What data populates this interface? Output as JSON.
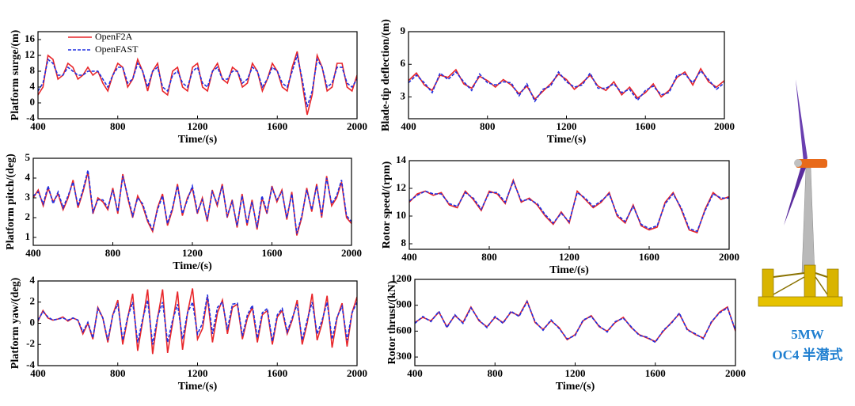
{
  "chart_data": [
    {
      "type": "line",
      "xlabel": "Time/(s)",
      "ylabel": "Platform surge/(m)",
      "legend": "upper left",
      "x": [
        400,
        425,
        450,
        475,
        500,
        525,
        550,
        575,
        600,
        625,
        650,
        675,
        700,
        725,
        750,
        775,
        800,
        825,
        850,
        875,
        900,
        925,
        950,
        975,
        1000,
        1025,
        1050,
        1075,
        1100,
        1125,
        1150,
        1175,
        1200,
        1225,
        1250,
        1275,
        1300,
        1325,
        1350,
        1375,
        1400,
        1425,
        1450,
        1475,
        1500,
        1525,
        1550,
        1575,
        1600,
        1625,
        1650,
        1675,
        1700,
        1725,
        1750,
        1775,
        1800,
        1825,
        1850,
        1875,
        1900,
        1925,
        1950,
        1975,
        2000
      ],
      "series": [
        {
          "name": "OpenF2A",
          "color": "#e8262a",
          "line_style": "solid",
          "values": [
            2,
            4,
            12,
            11,
            6,
            7,
            10,
            9,
            6,
            7,
            9,
            7,
            8,
            5,
            3,
            7,
            10,
            9,
            4,
            6,
            11,
            8,
            3,
            8,
            10,
            3,
            2,
            8,
            9,
            4,
            3,
            9,
            10,
            4,
            3,
            8,
            10,
            6,
            5,
            9,
            8,
            4,
            5,
            10,
            8,
            3,
            6,
            10,
            8,
            4,
            3,
            9,
            13,
            5,
            -3,
            2,
            12,
            9,
            3,
            4,
            10,
            10,
            4,
            3,
            7
          ]
        },
        {
          "name": "OpenFAST",
          "color": "#1f2ee0",
          "line_style": "dashed",
          "values": [
            3,
            5,
            11,
            10,
            7,
            7,
            9,
            8,
            7,
            7,
            8,
            8,
            8,
            6,
            4,
            7,
            9,
            9,
            5,
            6,
            10,
            8,
            4,
            8,
            9,
            4,
            3,
            7,
            8,
            5,
            4,
            8,
            9,
            5,
            4,
            8,
            9,
            6,
            6,
            8,
            8,
            5,
            6,
            9,
            8,
            4,
            6,
            9,
            8,
            5,
            4,
            8,
            12,
            6,
            -1,
            3,
            11,
            9,
            4,
            5,
            9,
            9,
            5,
            4,
            6
          ]
        }
      ],
      "xlim": [
        400,
        2000
      ],
      "ylim": [
        -4,
        18
      ],
      "xticks": [
        400,
        800,
        1200,
        1600,
        2000
      ],
      "yticks": [
        -4,
        0,
        4,
        8,
        12,
        16
      ]
    },
    {
      "type": "line",
      "xlabel": "Time/(s)",
      "ylabel": "Blade-tip deflection/(m)",
      "x": [
        400,
        440,
        480,
        520,
        560,
        600,
        640,
        680,
        720,
        760,
        800,
        840,
        880,
        920,
        960,
        1000,
        1040,
        1080,
        1120,
        1160,
        1200,
        1240,
        1280,
        1320,
        1360,
        1400,
        1440,
        1480,
        1520,
        1560,
        1600,
        1640,
        1680,
        1720,
        1760,
        1800,
        1840,
        1880,
        1920,
        1960,
        2000
      ],
      "series": [
        {
          "color": "#e8262a",
          "line_style": "solid",
          "values": [
            4.5,
            5.2,
            4.1,
            3.6,
            5.0,
            4.8,
            5.5,
            4.2,
            3.8,
            4.9,
            4.5,
            3.9,
            4.6,
            4.1,
            3.3,
            4.0,
            2.8,
            3.5,
            4.2,
            5.1,
            4.6,
            3.7,
            4.3,
            5.0,
            4.0,
            3.6,
            4.4,
            3.2,
            3.9,
            2.9,
            3.4,
            4.2,
            3.0,
            3.6,
            4.8,
            5.3,
            4.1,
            5.6,
            4.4,
            3.9,
            4.5
          ]
        },
        {
          "color": "#1f2ee0",
          "line_style": "dashed",
          "values": [
            4.3,
            5.0,
            4.3,
            3.4,
            5.2,
            4.6,
            5.3,
            4.4,
            3.6,
            5.1,
            4.3,
            4.1,
            4.4,
            4.3,
            3.1,
            4.2,
            2.6,
            3.7,
            4.0,
            5.3,
            4.4,
            3.9,
            4.1,
            5.2,
            3.8,
            3.8,
            4.2,
            3.4,
            3.7,
            2.7,
            3.6,
            4.0,
            3.2,
            3.4,
            5.0,
            5.1,
            4.3,
            5.4,
            4.6,
            3.7,
            4.3
          ]
        }
      ],
      "xlim": [
        400,
        2000
      ],
      "ylim": [
        1,
        9
      ],
      "xticks": [
        400,
        800,
        1200,
        1600,
        2000
      ],
      "yticks": [
        3,
        6,
        9
      ]
    },
    {
      "type": "line",
      "xlabel": "Time/(s)",
      "ylabel": "Platform pitch/(deg)",
      "x": [
        400,
        425,
        450,
        475,
        500,
        525,
        550,
        575,
        600,
        625,
        650,
        675,
        700,
        725,
        750,
        775,
        800,
        825,
        850,
        875,
        900,
        925,
        950,
        975,
        1000,
        1025,
        1050,
        1075,
        1100,
        1125,
        1150,
        1175,
        1200,
        1225,
        1250,
        1275,
        1300,
        1325,
        1350,
        1375,
        1400,
        1425,
        1450,
        1475,
        1500,
        1525,
        1550,
        1575,
        1600,
        1625,
        1650,
        1675,
        1700,
        1725,
        1750,
        1775,
        1800,
        1825,
        1850,
        1875,
        1900,
        1925,
        1950,
        1975,
        2000
      ],
      "series": [
        {
          "color": "#e8262a",
          "line_style": "solid",
          "values": [
            3.0,
            3.4,
            2.6,
            3.5,
            2.8,
            3.2,
            2.4,
            3.0,
            3.9,
            2.5,
            3.3,
            4.3,
            2.2,
            3.0,
            2.8,
            2.4,
            3.5,
            2.2,
            4.2,
            3.0,
            2.0,
            3.1,
            2.6,
            1.8,
            1.3,
            2.5,
            3.2,
            1.6,
            2.4,
            3.7,
            2.1,
            3.0,
            3.5,
            2.2,
            3.0,
            1.8,
            3.4,
            2.6,
            3.7,
            2.0,
            2.9,
            1.5,
            3.2,
            1.6,
            2.9,
            1.4,
            3.0,
            2.2,
            3.6,
            2.8,
            3.4,
            1.9,
            3.3,
            1.1,
            2.0,
            3.5,
            2.3,
            3.7,
            2.0,
            4.1,
            2.6,
            3.0,
            3.8,
            2.0,
            1.7
          ]
        },
        {
          "color": "#1f2ee0",
          "line_style": "dashed",
          "values": [
            3.1,
            3.3,
            2.7,
            3.6,
            2.7,
            3.3,
            2.5,
            3.1,
            3.8,
            2.6,
            3.4,
            4.4,
            2.3,
            2.9,
            2.9,
            2.5,
            3.4,
            2.3,
            4.1,
            3.1,
            2.1,
            3.0,
            2.7,
            1.9,
            1.4,
            2.4,
            3.1,
            1.7,
            2.5,
            3.6,
            2.2,
            2.9,
            3.6,
            2.3,
            2.9,
            1.9,
            3.3,
            2.7,
            3.6,
            2.1,
            2.8,
            1.6,
            3.1,
            1.7,
            2.8,
            1.5,
            3.1,
            2.3,
            3.5,
            2.9,
            3.3,
            2.0,
            3.2,
            1.2,
            2.1,
            3.4,
            2.4,
            3.6,
            2.1,
            4.0,
            2.7,
            3.1,
            3.9,
            2.1,
            1.8
          ]
        }
      ],
      "xlim": [
        400,
        2000
      ],
      "ylim": [
        0.6,
        5
      ],
      "xticks": [
        400,
        800,
        1200,
        1600,
        2000
      ],
      "yticks": [
        1,
        2,
        3,
        4,
        5
      ]
    },
    {
      "type": "line",
      "xlabel": "Time/(s)",
      "ylabel": "Rotor speed/(rpm)",
      "x": [
        400,
        440,
        480,
        520,
        560,
        600,
        640,
        680,
        720,
        760,
        800,
        840,
        880,
        920,
        960,
        1000,
        1040,
        1080,
        1120,
        1160,
        1200,
        1240,
        1280,
        1320,
        1360,
        1400,
        1440,
        1480,
        1520,
        1560,
        1600,
        1640,
        1680,
        1720,
        1760,
        1800,
        1840,
        1880,
        1920,
        1960,
        2000
      ],
      "series": [
        {
          "color": "#e8262a",
          "line_style": "solid",
          "values": [
            11.0,
            11.6,
            11.8,
            11.5,
            11.7,
            10.8,
            10.6,
            11.8,
            11.2,
            10.4,
            11.8,
            11.6,
            10.9,
            12.6,
            11.0,
            11.3,
            10.8,
            10.0,
            9.4,
            10.3,
            9.5,
            11.8,
            11.2,
            10.6,
            11.0,
            11.7,
            10.0,
            9.5,
            10.8,
            9.3,
            9.0,
            9.2,
            11.0,
            11.7,
            10.5,
            9.0,
            8.8,
            10.5,
            11.7,
            11.2,
            11.4
          ]
        },
        {
          "color": "#1f2ee0",
          "line_style": "dashed",
          "values": [
            11.1,
            11.5,
            11.8,
            11.6,
            11.6,
            10.9,
            10.7,
            11.7,
            11.3,
            10.5,
            11.7,
            11.7,
            11.0,
            12.5,
            11.1,
            11.2,
            10.9,
            10.1,
            9.5,
            10.2,
            9.6,
            11.7,
            11.3,
            10.7,
            11.1,
            11.6,
            10.1,
            9.6,
            10.7,
            9.4,
            9.1,
            9.3,
            10.9,
            11.6,
            10.6,
            9.1,
            8.9,
            10.4,
            11.6,
            11.3,
            11.3
          ]
        }
      ],
      "xlim": [
        400,
        2000
      ],
      "ylim": [
        7.6,
        14
      ],
      "xticks": [
        400,
        800,
        1200,
        1600,
        2000
      ],
      "yticks": [
        8,
        10,
        12,
        14
      ]
    },
    {
      "type": "line",
      "xlabel": "Time/(s)",
      "ylabel": "Platform yaw/(deg)",
      "x": [
        400,
        425,
        450,
        475,
        500,
        525,
        550,
        575,
        600,
        625,
        650,
        675,
        700,
        725,
        750,
        775,
        800,
        825,
        850,
        875,
        900,
        925,
        950,
        975,
        1000,
        1025,
        1050,
        1075,
        1100,
        1125,
        1150,
        1175,
        1200,
        1225,
        1250,
        1275,
        1300,
        1325,
        1350,
        1375,
        1400,
        1425,
        1450,
        1475,
        1500,
        1525,
        1550,
        1575,
        1600,
        1625,
        1650,
        1675,
        1700,
        1725,
        1750,
        1775,
        1800,
        1825,
        1850,
        1875,
        1900,
        1925,
        1950,
        1975,
        2000
      ],
      "series": [
        {
          "color": "#e8262a",
          "line_style": "solid",
          "values": [
            0.2,
            1.2,
            0.5,
            0.3,
            0.4,
            0.6,
            0.2,
            0.5,
            0.3,
            -1.0,
            0.0,
            -1.5,
            1.5,
            0.5,
            -1.8,
            0.8,
            2.2,
            -2.0,
            0.5,
            2.8,
            -2.6,
            0.2,
            3.2,
            -2.9,
            0.5,
            3.2,
            -2.8,
            0.0,
            3.0,
            -2.5,
            1.0,
            3.3,
            -1.5,
            -0.5,
            2.5,
            -1.8,
            1.0,
            2.2,
            -1.0,
            1.5,
            1.8,
            -1.5,
            0.5,
            1.5,
            -1.8,
            0.8,
            1.2,
            -2.0,
            0.6,
            1.2,
            -1.0,
            0.3,
            2.2,
            -2.0,
            0.0,
            2.8,
            -1.6,
            0.0,
            2.6,
            -2.3,
            0.5,
            1.9,
            -2.2,
            1.0,
            2.5
          ]
        },
        {
          "color": "#1f2ee0",
          "line_style": "dashed",
          "values": [
            0.3,
            1.1,
            0.6,
            0.3,
            0.4,
            0.5,
            0.3,
            0.5,
            0.3,
            -0.8,
            0.1,
            -1.4,
            1.4,
            0.5,
            -1.6,
            0.8,
            1.8,
            -1.6,
            0.6,
            2.0,
            -1.8,
            0.4,
            2.2,
            -2.0,
            0.6,
            2.0,
            -1.8,
            0.3,
            1.8,
            -1.5,
            1.0,
            2.0,
            -1.0,
            0.0,
            2.7,
            -1.0,
            1.5,
            2.0,
            -0.6,
            1.8,
            1.9,
            -1.2,
            0.8,
            1.7,
            -1.4,
            1.0,
            1.4,
            -1.7,
            0.8,
            1.4,
            -0.8,
            0.5,
            1.8,
            -1.6,
            0.3,
            2.0,
            -1.0,
            0.3,
            2.0,
            -1.5,
            0.6,
            1.6,
            -1.6,
            1.0,
            2.0
          ]
        }
      ],
      "xlim": [
        400,
        2000
      ],
      "ylim": [
        -4,
        4
      ],
      "xticks": [
        400,
        800,
        1200,
        1600,
        2000
      ],
      "yticks": [
        -4,
        -2,
        0,
        2,
        4
      ]
    },
    {
      "type": "line",
      "xlabel": "Time/(s)",
      "ylabel": "Rotor thrust/(kN)",
      "x": [
        400,
        440,
        480,
        520,
        560,
        600,
        640,
        680,
        720,
        760,
        800,
        840,
        880,
        920,
        960,
        1000,
        1040,
        1080,
        1120,
        1160,
        1200,
        1240,
        1280,
        1320,
        1360,
        1400,
        1440,
        1480,
        1520,
        1560,
        1600,
        1640,
        1680,
        1720,
        1760,
        1800,
        1840,
        1880,
        1920,
        1960,
        2000
      ],
      "series": [
        {
          "color": "#e8262a",
          "line_style": "solid",
          "values": [
            700,
            760,
            720,
            820,
            650,
            780,
            700,
            880,
            720,
            650,
            760,
            700,
            820,
            780,
            950,
            700,
            620,
            720,
            640,
            500,
            560,
            720,
            780,
            650,
            600,
            700,
            760,
            640,
            560,
            520,
            480,
            600,
            700,
            800,
            620,
            560,
            520,
            700,
            820,
            880,
            600
          ]
        },
        {
          "color": "#1f2ee0",
          "line_style": "dashed",
          "values": [
            690,
            770,
            710,
            830,
            640,
            790,
            690,
            870,
            730,
            640,
            770,
            690,
            830,
            770,
            940,
            710,
            610,
            730,
            630,
            510,
            550,
            730,
            770,
            660,
            590,
            710,
            750,
            650,
            550,
            530,
            470,
            610,
            690,
            810,
            610,
            570,
            510,
            710,
            810,
            870,
            610
          ]
        }
      ],
      "xlim": [
        400,
        2000
      ],
      "ylim": [
        200,
        1200
      ],
      "xticks": [
        400,
        800,
        1200,
        1600,
        2000
      ],
      "yticks": [
        300,
        600,
        900,
        1200
      ]
    }
  ],
  "illustration": {
    "label_lines": [
      "5MW",
      "OC4 半潜式"
    ]
  }
}
